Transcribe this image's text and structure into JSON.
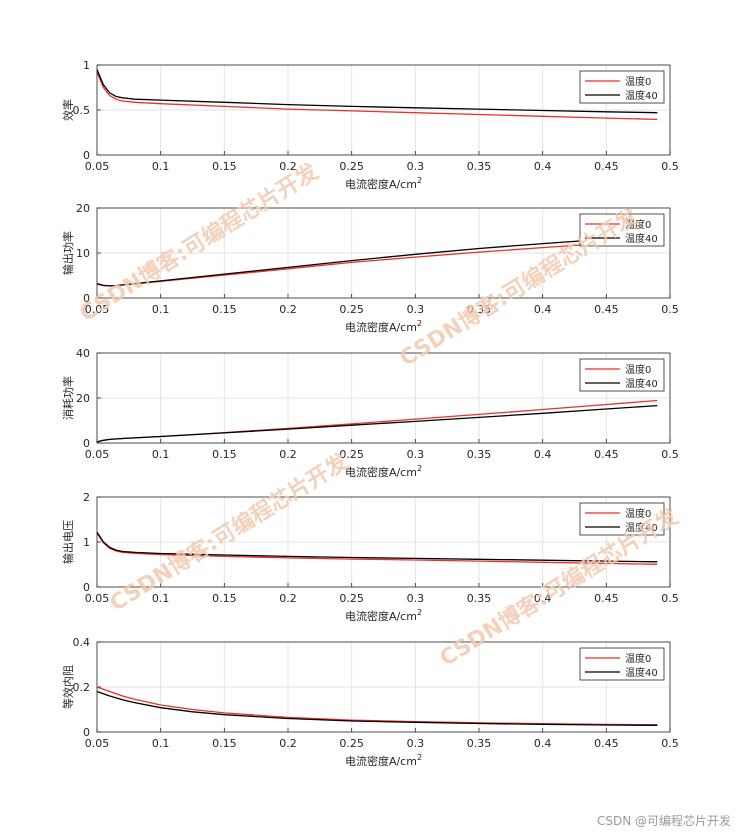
{
  "watermark": "CSDN博客:可编程芯片开发",
  "credit": "CSDN @可编程芯片开发",
  "colors": {
    "red": "#e8322a",
    "black": "#000000",
    "grid": "#e3e3e3",
    "axis": "#262626"
  },
  "chart_data": [
    {
      "type": "line",
      "ylabel": "效率",
      "xlabel": "电流密度A/cm",
      "xlabel_sup": "2",
      "xlim": [
        0.05,
        0.5
      ],
      "ylim": [
        0,
        1
      ],
      "xticks": [
        "0.05",
        "0.1",
        "0.15",
        "0.2",
        "0.25",
        "0.3",
        "0.35",
        "0.4",
        "0.45",
        "0.5"
      ],
      "yticks": [
        "0",
        "0.5",
        "1"
      ],
      "ytick_values": [
        0,
        0.5,
        1
      ],
      "legend": "top-right",
      "grid": true,
      "series": [
        {
          "name": "温度0",
          "color": "red",
          "x": [
            0.05,
            0.055,
            0.06,
            0.065,
            0.07,
            0.08,
            0.1,
            0.15,
            0.2,
            0.25,
            0.3,
            0.35,
            0.4,
            0.45,
            0.49
          ],
          "y": [
            0.92,
            0.75,
            0.66,
            0.62,
            0.6,
            0.585,
            0.57,
            0.54,
            0.51,
            0.49,
            0.47,
            0.45,
            0.43,
            0.41,
            0.395
          ]
        },
        {
          "name": "温度40",
          "color": "black",
          "x": [
            0.05,
            0.055,
            0.06,
            0.065,
            0.07,
            0.08,
            0.1,
            0.15,
            0.2,
            0.25,
            0.3,
            0.35,
            0.4,
            0.45,
            0.49
          ],
          "y": [
            0.95,
            0.78,
            0.69,
            0.65,
            0.635,
            0.62,
            0.61,
            0.585,
            0.56,
            0.54,
            0.525,
            0.51,
            0.495,
            0.48,
            0.47
          ]
        }
      ]
    },
    {
      "type": "line",
      "ylabel": "输出功率",
      "xlabel": "电流密度A/cm",
      "xlabel_sup": "2",
      "xlim": [
        0.05,
        0.5
      ],
      "ylim": [
        0,
        20
      ],
      "xticks": [
        "0.05",
        "0.1",
        "0.15",
        "0.2",
        "0.25",
        "0.3",
        "0.35",
        "0.4",
        "0.45",
        "0.5"
      ],
      "yticks": [
        "0",
        "10",
        "20"
      ],
      "ytick_values": [
        0,
        10,
        20
      ],
      "legend": "top-right",
      "grid": true,
      "series": [
        {
          "name": "温度0",
          "color": "red",
          "x": [
            0.05,
            0.055,
            0.06,
            0.065,
            0.07,
            0.1,
            0.15,
            0.2,
            0.25,
            0.3,
            0.35,
            0.4,
            0.45,
            0.49
          ],
          "y": [
            3.1,
            2.75,
            2.7,
            2.75,
            2.9,
            3.7,
            5.1,
            6.5,
            7.9,
            9.1,
            10.2,
            11.2,
            12.2,
            12.9
          ]
        },
        {
          "name": "温度40",
          "color": "black",
          "x": [
            0.05,
            0.055,
            0.06,
            0.065,
            0.07,
            0.1,
            0.15,
            0.2,
            0.25,
            0.3,
            0.35,
            0.4,
            0.45,
            0.49
          ],
          "y": [
            3.2,
            2.8,
            2.7,
            2.75,
            2.9,
            3.8,
            5.3,
            6.8,
            8.3,
            9.7,
            11.0,
            12.1,
            13.1,
            13.8
          ]
        }
      ]
    },
    {
      "type": "line",
      "ylabel": "消耗功率",
      "xlabel": "电流密度A/cm",
      "xlabel_sup": "2",
      "xlim": [
        0.05,
        0.5
      ],
      "ylim": [
        0,
        40
      ],
      "xticks": [
        "0.05",
        "0.1",
        "0.15",
        "0.2",
        "0.25",
        "0.3",
        "0.35",
        "0.4",
        "0.45",
        "0.5"
      ],
      "yticks": [
        "0",
        "20",
        "40"
      ],
      "ytick_values": [
        0,
        20,
        40
      ],
      "legend": "top-right",
      "grid": true,
      "series": [
        {
          "name": "温度0",
          "color": "red",
          "x": [
            0.05,
            0.055,
            0.06,
            0.07,
            0.1,
            0.15,
            0.2,
            0.25,
            0.3,
            0.35,
            0.4,
            0.45,
            0.49
          ],
          "y": [
            0.5,
            1.2,
            1.6,
            2.0,
            2.9,
            4.6,
            6.5,
            8.5,
            10.6,
            12.7,
            14.9,
            17.1,
            18.9
          ]
        },
        {
          "name": "温度40",
          "color": "black",
          "x": [
            0.05,
            0.055,
            0.06,
            0.07,
            0.1,
            0.15,
            0.2,
            0.25,
            0.3,
            0.35,
            0.4,
            0.45,
            0.49
          ],
          "y": [
            0.5,
            1.2,
            1.6,
            2.0,
            2.9,
            4.5,
            6.2,
            7.9,
            9.6,
            11.4,
            13.2,
            15.1,
            16.6
          ]
        }
      ]
    },
    {
      "type": "line",
      "ylabel": "输出电压",
      "xlabel": "电流密度A/cm",
      "xlabel_sup": "2",
      "xlim": [
        0.05,
        0.5
      ],
      "ylim": [
        0,
        2
      ],
      "xticks": [
        "0.05",
        "0.1",
        "0.15",
        "0.2",
        "0.25",
        "0.3",
        "0.35",
        "0.4",
        "0.45",
        "0.5"
      ],
      "yticks": [
        "0",
        "1",
        "2"
      ],
      "ytick_values": [
        0,
        1,
        2
      ],
      "legend": "top-right",
      "grid": true,
      "series": [
        {
          "name": "温度0",
          "color": "red",
          "x": [
            0.05,
            0.055,
            0.06,
            0.065,
            0.07,
            0.08,
            0.1,
            0.15,
            0.2,
            0.25,
            0.3,
            0.35,
            0.4,
            0.45,
            0.49
          ],
          "y": [
            1.2,
            0.98,
            0.86,
            0.8,
            0.77,
            0.75,
            0.72,
            0.68,
            0.65,
            0.62,
            0.6,
            0.575,
            0.55,
            0.525,
            0.505
          ]
        },
        {
          "name": "温度40",
          "color": "black",
          "x": [
            0.05,
            0.055,
            0.06,
            0.065,
            0.07,
            0.08,
            0.1,
            0.15,
            0.2,
            0.25,
            0.3,
            0.35,
            0.4,
            0.45,
            0.49
          ],
          "y": [
            1.22,
            1.0,
            0.88,
            0.82,
            0.79,
            0.77,
            0.745,
            0.71,
            0.68,
            0.655,
            0.635,
            0.615,
            0.595,
            0.575,
            0.56
          ]
        }
      ]
    },
    {
      "type": "line",
      "ylabel": "等效内阻",
      "xlabel": "电流密度A/cm",
      "xlabel_sup": "2",
      "xlim": [
        0.05,
        0.5
      ],
      "ylim": [
        0,
        0.4
      ],
      "xticks": [
        "0.05",
        "0.1",
        "0.15",
        "0.2",
        "0.25",
        "0.3",
        "0.35",
        "0.4",
        "0.45",
        "0.5"
      ],
      "yticks": [
        "0",
        "0.2",
        "0.4"
      ],
      "ytick_values": [
        0,
        0.2,
        0.4
      ],
      "legend": "top-right",
      "grid": true,
      "series": [
        {
          "name": "温度0",
          "color": "red",
          "x": [
            0.05,
            0.06,
            0.07,
            0.08,
            0.1,
            0.125,
            0.15,
            0.2,
            0.25,
            0.3,
            0.35,
            0.4,
            0.45,
            0.49
          ],
          "y": [
            0.2,
            0.18,
            0.16,
            0.145,
            0.12,
            0.1,
            0.085,
            0.065,
            0.053,
            0.046,
            0.041,
            0.037,
            0.034,
            0.032
          ]
        },
        {
          "name": "温度40",
          "color": "black",
          "x": [
            0.05,
            0.06,
            0.07,
            0.08,
            0.1,
            0.125,
            0.15,
            0.2,
            0.25,
            0.3,
            0.35,
            0.4,
            0.45,
            0.49
          ],
          "y": [
            0.18,
            0.16,
            0.143,
            0.13,
            0.108,
            0.09,
            0.077,
            0.06,
            0.049,
            0.043,
            0.038,
            0.034,
            0.031,
            0.03
          ]
        }
      ]
    }
  ]
}
